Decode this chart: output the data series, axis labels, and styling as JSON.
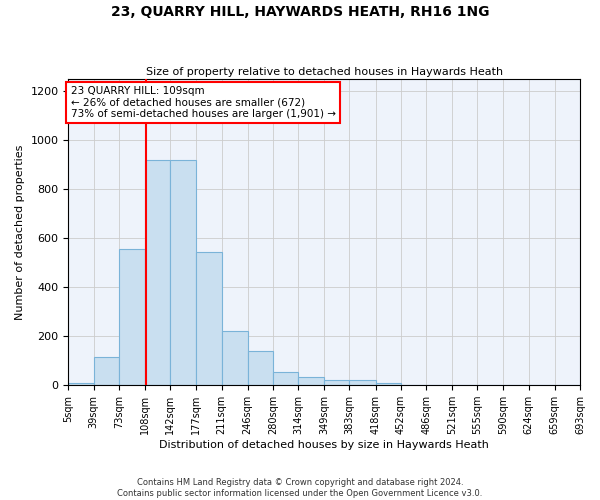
{
  "title": "23, QUARRY HILL, HAYWARDS HEATH, RH16 1NG",
  "subtitle": "Size of property relative to detached houses in Haywards Heath",
  "xlabel": "Distribution of detached houses by size in Haywards Heath",
  "ylabel": "Number of detached properties",
  "bar_color": "#c9dff0",
  "bar_edge_color": "#7ab3d8",
  "grid_color": "#cccccc",
  "background_color": "#eef3fb",
  "annotation_text": "23 QUARRY HILL: 109sqm\n← 26% of detached houses are smaller (672)\n73% of semi-detached houses are larger (1,901) →",
  "annotation_box_color": "white",
  "annotation_box_edge_color": "red",
  "vline_x": 109,
  "vline_color": "red",
  "bin_edges": [
    5,
    39,
    73,
    108,
    142,
    177,
    211,
    246,
    280,
    314,
    349,
    383,
    418,
    452,
    486,
    521,
    555,
    590,
    624,
    659,
    693
  ],
  "bin_labels": [
    "5sqm",
    "39sqm",
    "73sqm",
    "108sqm",
    "142sqm",
    "177sqm",
    "211sqm",
    "246sqm",
    "280sqm",
    "314sqm",
    "349sqm",
    "383sqm",
    "418sqm",
    "452sqm",
    "486sqm",
    "521sqm",
    "555sqm",
    "590sqm",
    "624sqm",
    "659sqm",
    "693sqm"
  ],
  "bar_heights": [
    10,
    115,
    555,
    920,
    920,
    545,
    220,
    140,
    55,
    35,
    20,
    20,
    10,
    0,
    0,
    0,
    0,
    0,
    0,
    0
  ],
  "ylim": [
    0,
    1250
  ],
  "yticks": [
    0,
    200,
    400,
    600,
    800,
    1000,
    1200
  ],
  "footer_line1": "Contains HM Land Registry data © Crown copyright and database right 2024.",
  "footer_line2": "Contains public sector information licensed under the Open Government Licence v3.0."
}
